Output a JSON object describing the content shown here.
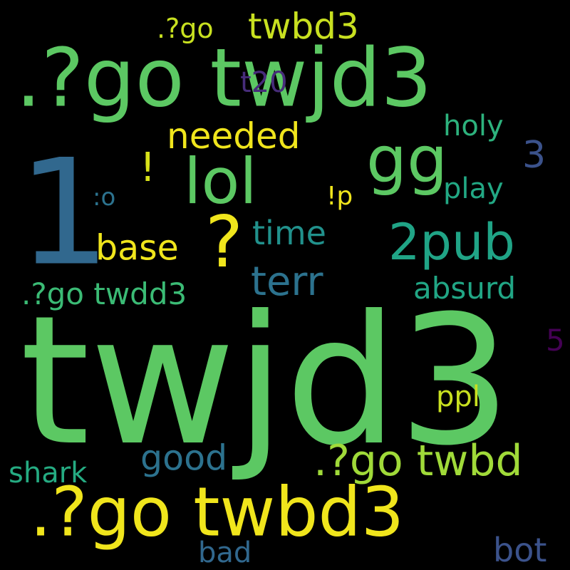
{
  "palette": {
    "background": "#000000",
    "bright_green": "#5cc863",
    "light_green": "#8fd744",
    "yellow_green": "#c8e020",
    "yellow": "#f0e51c",
    "teal": "#21918c",
    "sea_green": "#2db27d",
    "steel_blue": "#2c728e",
    "blue": "#3b528b",
    "purple": "#440154",
    "dark_purple": "#472c7a"
  },
  "words": {
    "twjd3_big": "twjd3",
    "one": "1",
    "go_twjd3": ".?go twjd3",
    "go_twbd3_bottom": ".?go twbd3",
    "lol": "lol",
    "gg": "gg",
    "question": "?",
    "twopub": "2pub",
    "go_twbd": ".?go twbd",
    "needed": "needed",
    "twbd3_top": "twbd3",
    "go_twdd3": ".?go twdd3",
    "terr": "terr",
    "time": "time",
    "base": "base",
    "good": "good",
    "absurd": "absurd",
    "shark": "shark",
    "bot": "bot",
    "bad": "bad",
    "ppl": "ppl",
    "holy": "holy",
    "play": "play",
    "go_small": ".?go",
    "t20": "t20",
    "three": "3",
    "five": "5",
    "excl": "!",
    "excl_p": "!p",
    "colon_o": ":o"
  }
}
